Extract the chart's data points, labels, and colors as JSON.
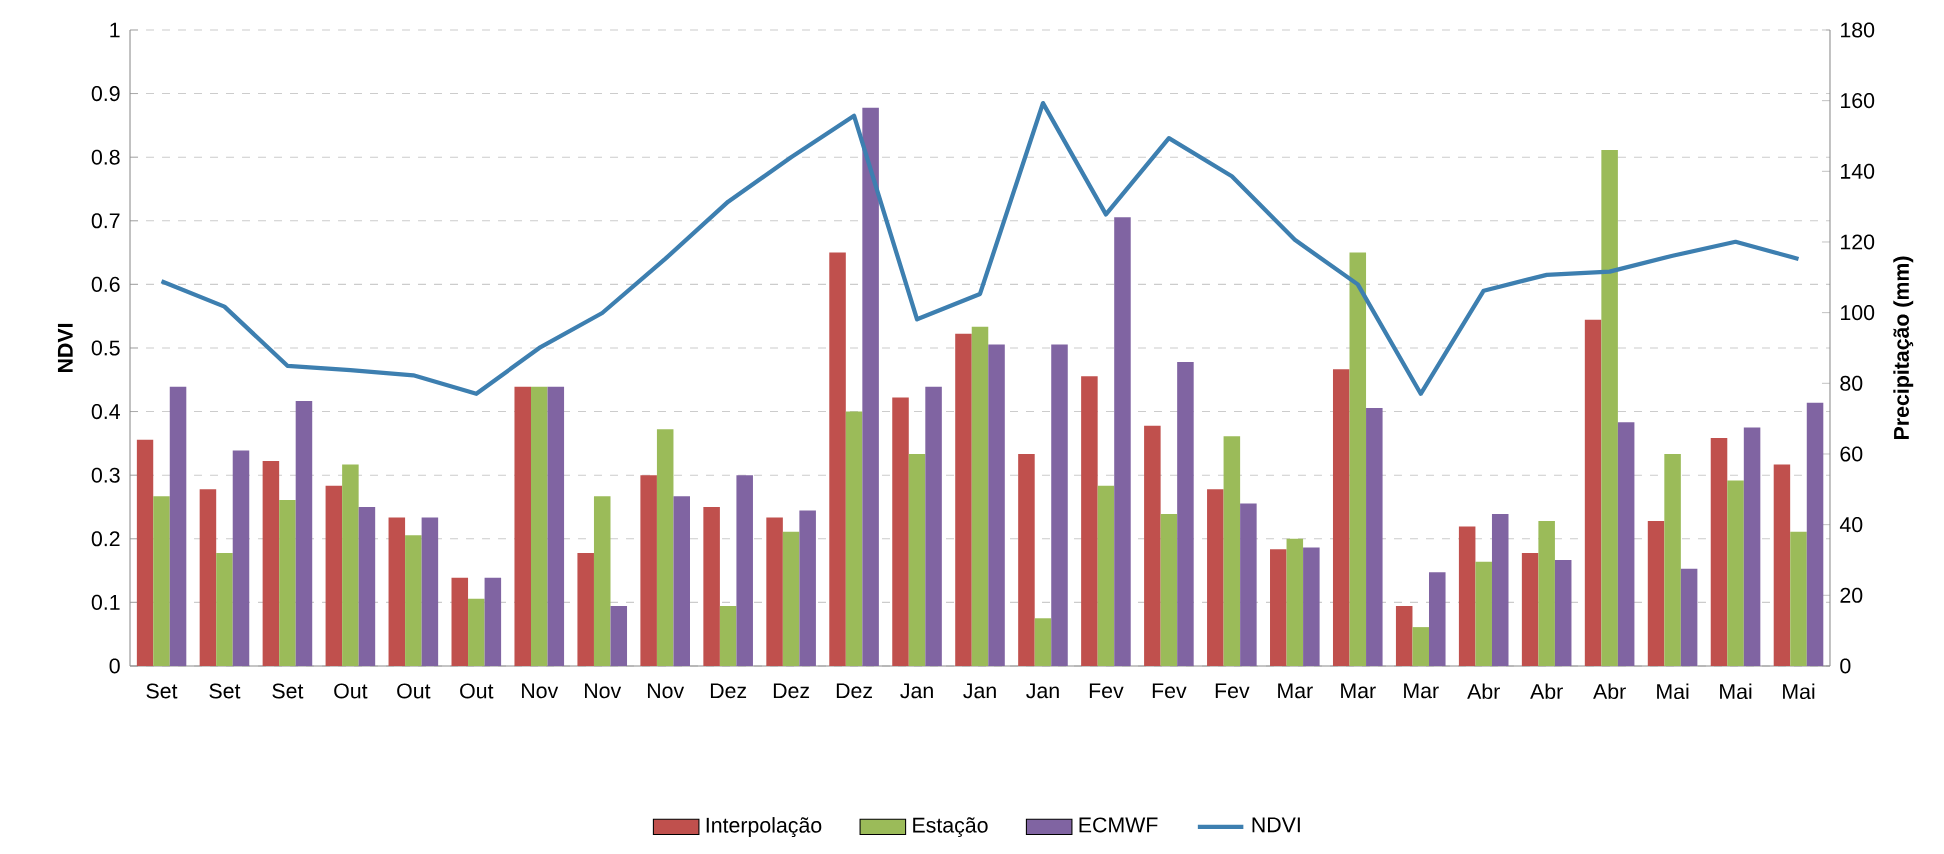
{
  "chart_data": {
    "type": "bar",
    "ylabel": "NDVI",
    "y2label": "Precipitação (mm)",
    "categories": [
      "Set",
      "Set",
      "Set",
      "Out",
      "Out",
      "Out",
      "Nov",
      "Nov",
      "Nov",
      "Dez",
      "Dez",
      "Dez",
      "Jan",
      "Jan",
      "Jan",
      "Fev",
      "Fev",
      "Fev",
      "Mar",
      "Mar",
      "Mar",
      "Abr",
      "Abr",
      "Abr",
      "Mai",
      "Mai",
      "Mai"
    ],
    "series": [
      {
        "name": "Interpolação",
        "axis": "y2",
        "color": "#c0504d",
        "values": [
          64,
          50,
          58,
          51,
          42,
          25,
          79,
          32,
          54,
          45,
          42,
          117,
          76,
          94,
          60,
          82,
          68,
          50,
          33,
          84,
          17,
          39.5,
          32,
          98,
          41,
          64.5,
          57
        ]
      },
      {
        "name": "Estação",
        "axis": "y2",
        "color": "#9bbb59",
        "values": [
          48,
          32,
          47,
          57,
          37,
          19,
          79,
          48,
          67,
          17,
          38,
          72,
          60,
          96,
          13.5,
          51,
          43,
          65,
          36,
          117,
          11,
          29.5,
          41,
          146,
          60,
          52.5,
          38
        ]
      },
      {
        "name": "ECMWF",
        "axis": "y2",
        "color": "#8064a2",
        "values": [
          79,
          61,
          75,
          45,
          42,
          25,
          79,
          17,
          48,
          54,
          44,
          158,
          79,
          91,
          91,
          127,
          86,
          46,
          33.5,
          73,
          26.5,
          43,
          30,
          69,
          27.5,
          67.5,
          74.5
        ]
      },
      {
        "name": "NDVI",
        "type": "line",
        "color": "#3d7fb0",
        "values": [
          0.605,
          0.565,
          0.472,
          0.465,
          0.457,
          0.428,
          0.5,
          0.555,
          0.64,
          0.73,
          0.8,
          0.865,
          0.545,
          0.585,
          0.885,
          0.71,
          0.83,
          0.77,
          0.67,
          0.6,
          0.428,
          0.59,
          0.615,
          0.62,
          0.645,
          0.667,
          0.64
        ]
      }
    ],
    "ylim": [
      0,
      1
    ],
    "yticks": [
      0,
      0.1,
      0.2,
      0.3,
      0.4,
      0.5,
      0.6,
      0.7,
      0.8,
      0.9,
      1
    ],
    "y2lim": [
      0,
      180
    ],
    "y2ticks": [
      0,
      20,
      40,
      60,
      80,
      100,
      120,
      140,
      160,
      180
    ],
    "grid": "y",
    "legend": "bottom"
  }
}
